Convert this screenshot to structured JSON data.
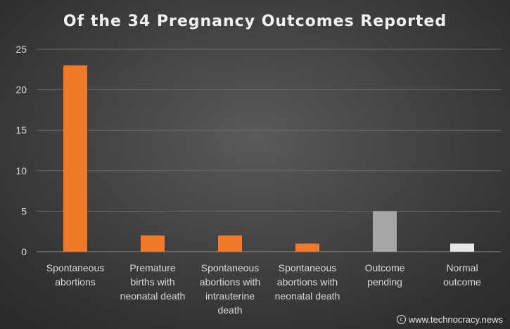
{
  "chart_data": {
    "type": "bar",
    "title": "Of the 34 Pregnancy Outcomes Reported",
    "categories": [
      [
        "Spontaneous",
        "abortions"
      ],
      [
        "Premature",
        "births with",
        "neonatal death"
      ],
      [
        "Spontaneous",
        "abortions with",
        "intrauterine",
        "death"
      ],
      [
        "Spontaneous",
        "abortions with",
        "neonatal death"
      ],
      [
        "Outcome",
        "pending"
      ],
      [
        "Normal",
        "outcome"
      ]
    ],
    "values": [
      23,
      2,
      2,
      1,
      5,
      1
    ],
    "colors": [
      "#f07a2a",
      "#f07a2a",
      "#f07a2a",
      "#f07a2a",
      "#a6a6a6",
      "#e8e8e8"
    ],
    "ylim": [
      0,
      25
    ],
    "yticks": [
      0,
      5,
      10,
      15,
      20,
      25
    ],
    "grid": true,
    "legend": "none",
    "xlabel": "",
    "ylabel": ""
  },
  "watermark": {
    "icon": "copyright-icon",
    "text": "www.technocracy.news"
  }
}
